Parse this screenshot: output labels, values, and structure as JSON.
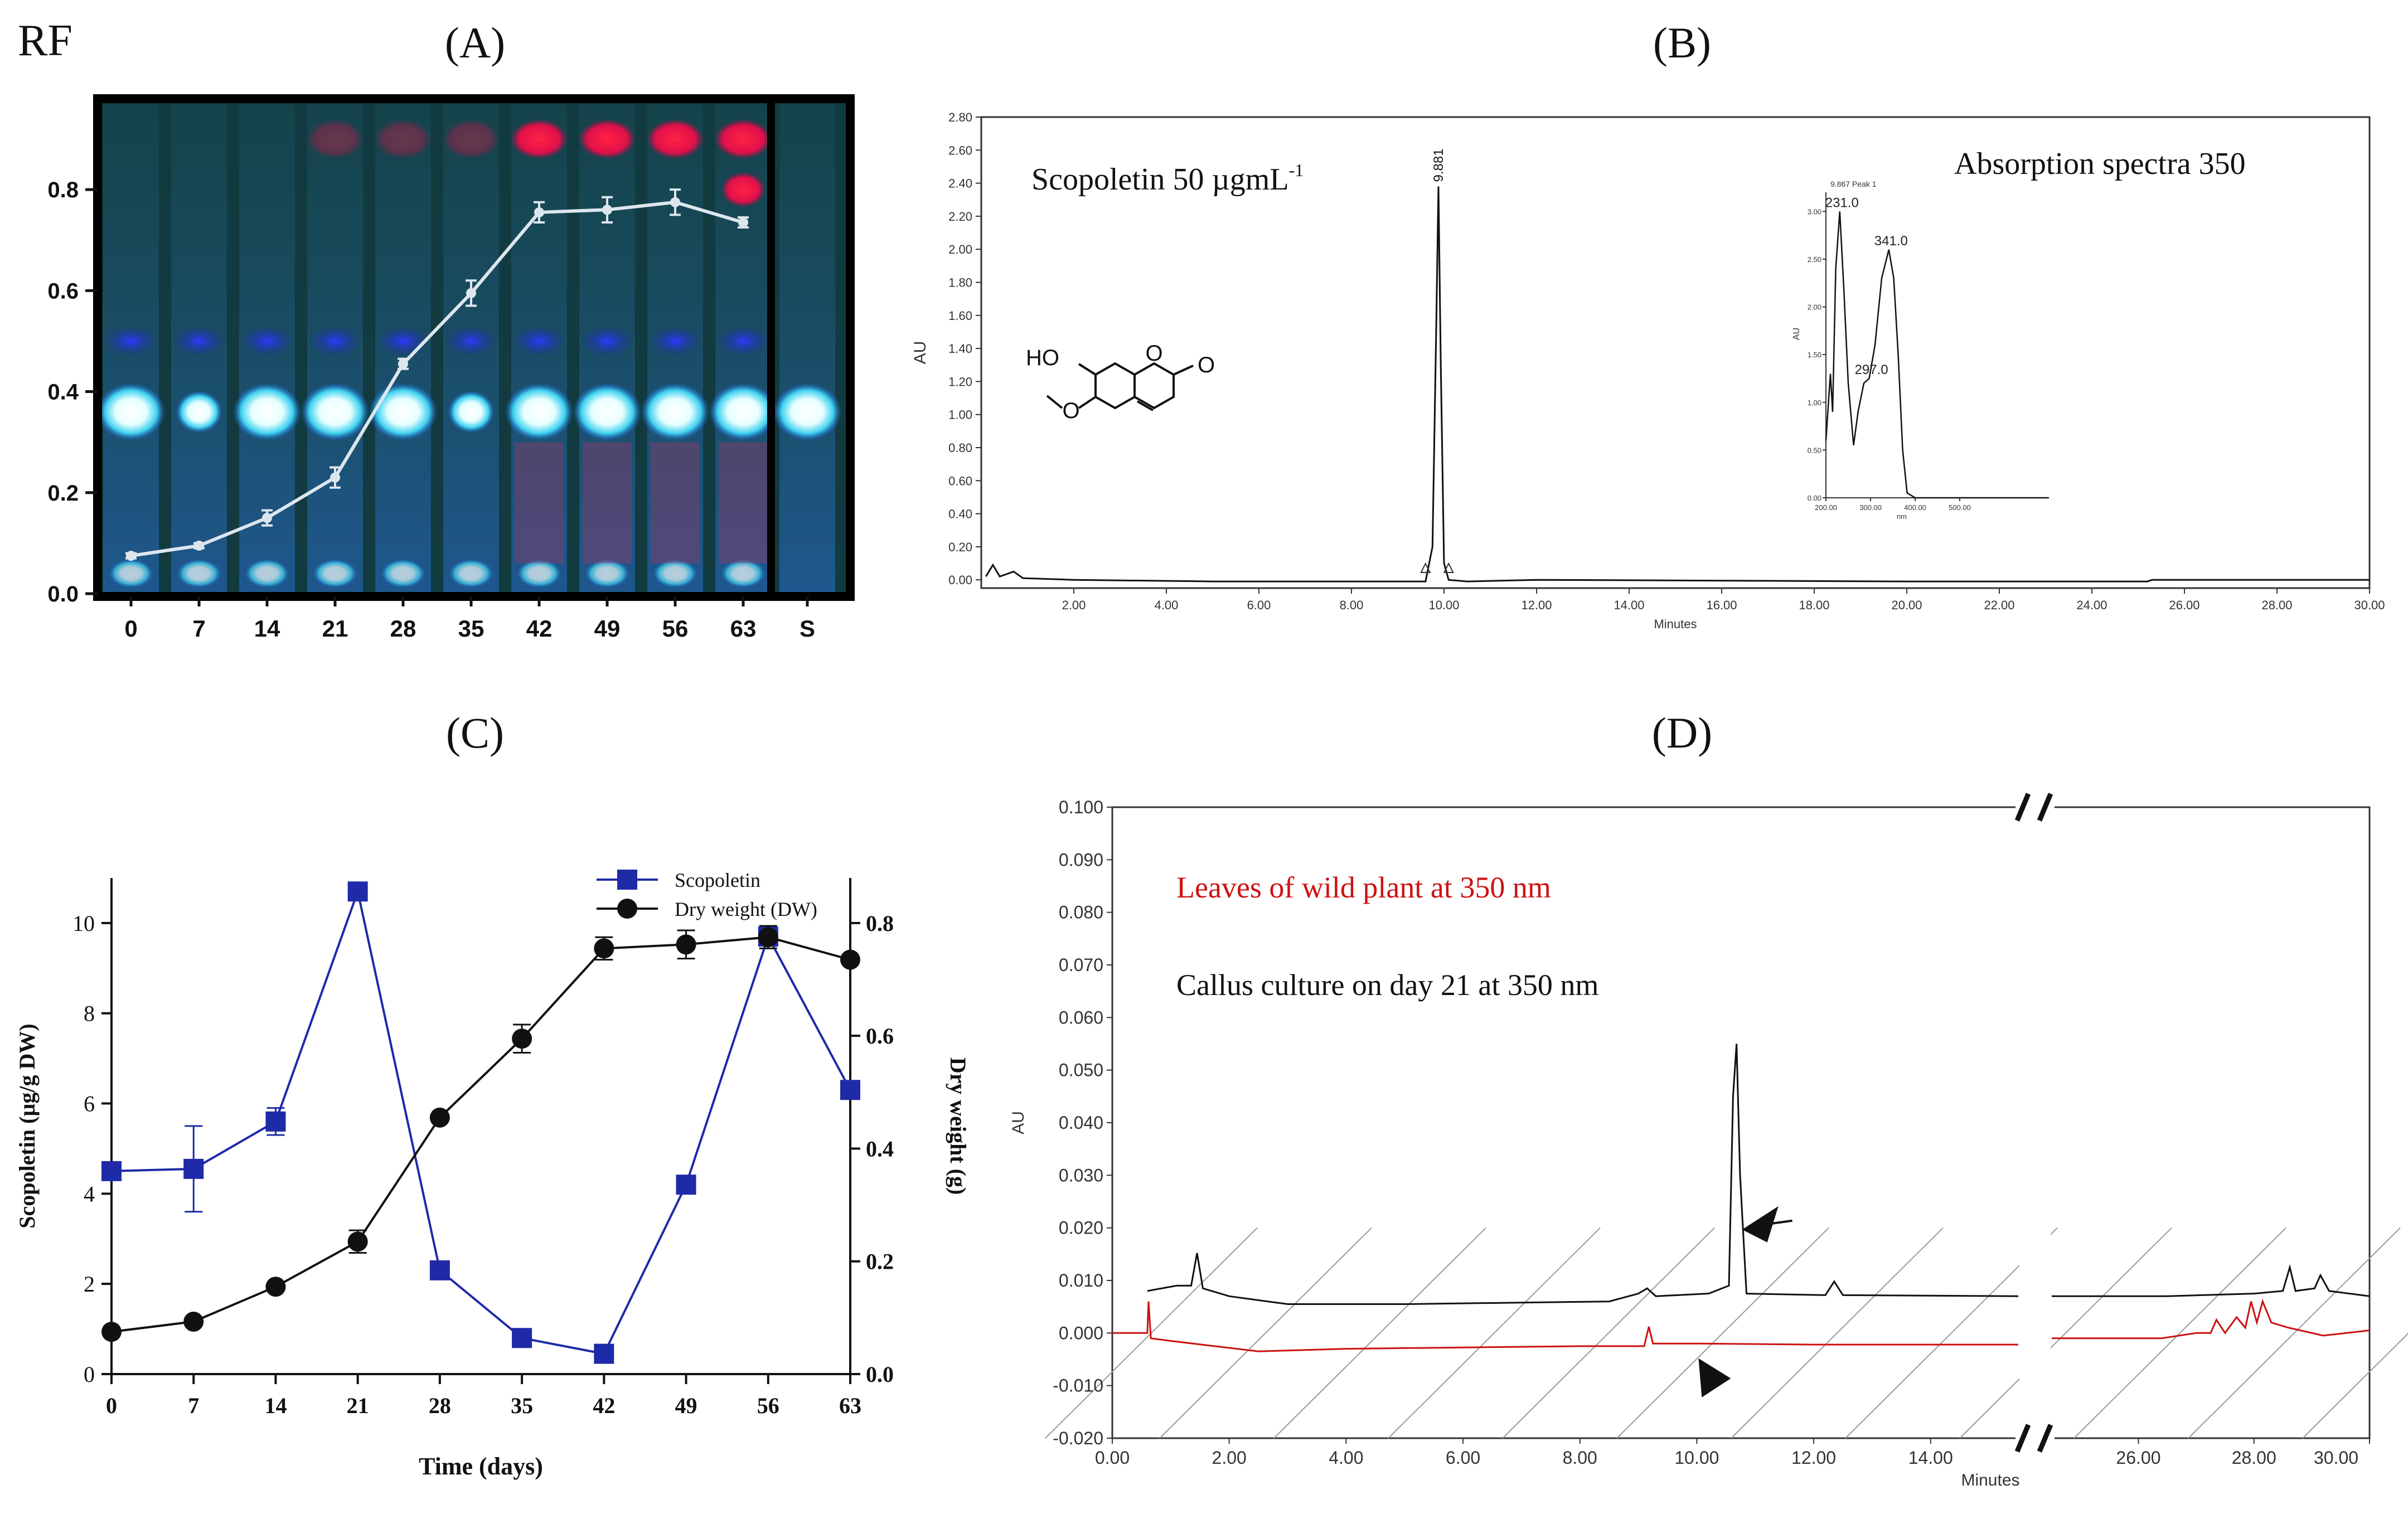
{
  "figure": {
    "rf_label": "RF",
    "panels": [
      "(A)",
      "(B)",
      "(C)",
      "(D)"
    ]
  },
  "chart_data": [
    {
      "panel": "(A)",
      "type": "line",
      "ylabel": "RF",
      "x_categories": [
        "0",
        "7",
        "14",
        "21",
        "28",
        "35",
        "42",
        "49",
        "56",
        "63",
        "S"
      ],
      "x": [
        0,
        7,
        14,
        21,
        28,
        35,
        42,
        49,
        56,
        63
      ],
      "values": [
        0.075,
        0.095,
        0.15,
        0.23,
        0.455,
        0.595,
        0.755,
        0.76,
        0.775,
        0.735
      ],
      "errors": [
        0.005,
        0.005,
        0.015,
        0.02,
        0.01,
        0.025,
        0.02,
        0.025,
        0.025,
        0.01
      ],
      "yticks": [
        "0.0",
        "0.2",
        "0.4",
        "0.6",
        "0.8"
      ],
      "ylim": [
        0,
        0.98
      ],
      "background": "TLC plate under UV",
      "colors": {
        "line": "#dde6ee",
        "plate": "#0f3a3f"
      }
    },
    {
      "panel": "(B)",
      "type": "line",
      "title": "Scopoletin 50 µgmL",
      "title_sup": "-1",
      "ylabel": "AU",
      "xlabel": "Minutes",
      "xticks": [
        "2.00",
        "4.00",
        "6.00",
        "8.00",
        "10.00",
        "12.00",
        "14.00",
        "16.00",
        "18.00",
        "20.00",
        "22.00",
        "24.00",
        "26.00",
        "28.00",
        "30.00"
      ],
      "yticks": [
        "0.00",
        "0.20",
        "0.40",
        "0.60",
        "0.80",
        "1.00",
        "1.20",
        "1.40",
        "1.60",
        "1.80",
        "2.00",
        "2.20",
        "2.40",
        "2.60",
        "2.80"
      ],
      "xlim": [
        0,
        30
      ],
      "ylim": [
        -0.05,
        2.8
      ],
      "peak": {
        "x": 9.881,
        "y": 2.38,
        "label": "9.881"
      },
      "trace": [
        [
          0.1,
          0.02
        ],
        [
          0.25,
          0.09
        ],
        [
          0.4,
          0.02
        ],
        [
          0.7,
          0.05
        ],
        [
          0.9,
          0.01
        ],
        [
          2,
          0.0
        ],
        [
          5,
          -0.01
        ],
        [
          9.6,
          -0.01
        ],
        [
          9.75,
          0.2
        ],
        [
          9.83,
          1.5
        ],
        [
          9.88,
          2.38
        ],
        [
          9.93,
          1.3
        ],
        [
          10.0,
          0.1
        ],
        [
          10.1,
          0.0
        ],
        [
          10.5,
          -0.01
        ],
        [
          12,
          -0.0
        ],
        [
          20,
          -0.01
        ],
        [
          25.2,
          -0.01
        ],
        [
          25.3,
          0.0
        ],
        [
          30,
          0.0
        ]
      ],
      "structure": {
        "atoms": [
          "HO",
          "O",
          "O"
        ]
      },
      "inset": {
        "title": "Absorption spectra 350",
        "header": "9.867 Peak 1",
        "ylabel": "AU",
        "xlabel": "nm",
        "xticks": [
          "200.00",
          "300.00",
          "400.00",
          "500.00"
        ],
        "yticks": [
          "0.00",
          "0.50",
          "1.00",
          "1.50",
          "2.00",
          "2.50",
          "3.00"
        ],
        "xlim": [
          200,
          700
        ],
        "ylim": [
          0,
          3.2
        ],
        "peak_labels": [
          {
            "x": 231,
            "y": 3.0,
            "label": "231.0"
          },
          {
            "x": 297,
            "y": 1.25,
            "label": "297.0"
          },
          {
            "x": 341,
            "y": 2.6,
            "label": "341.0"
          }
        ],
        "trace": [
          [
            200,
            0.6
          ],
          [
            210,
            1.3
          ],
          [
            215,
            0.9
          ],
          [
            222,
            2.4
          ],
          [
            231,
            3.0
          ],
          [
            240,
            2.2
          ],
          [
            250,
            1.2
          ],
          [
            262,
            0.55
          ],
          [
            272,
            0.9
          ],
          [
            285,
            1.2
          ],
          [
            297,
            1.25
          ],
          [
            310,
            1.6
          ],
          [
            325,
            2.3
          ],
          [
            341,
            2.6
          ],
          [
            352,
            2.3
          ],
          [
            362,
            1.5
          ],
          [
            372,
            0.5
          ],
          [
            382,
            0.05
          ],
          [
            400,
            0.0
          ],
          [
            700,
            0.0
          ]
        ]
      }
    },
    {
      "panel": "(C)",
      "type": "line",
      "xlabel": "Time (days)",
      "ylabel": "Scopoletin (µg/g DW)",
      "y2label": "Dry weight (g)",
      "x": [
        0,
        7,
        14,
        21,
        28,
        35,
        42,
        49,
        56,
        63
      ],
      "xticks": [
        "0",
        "7",
        "14",
        "21",
        "28",
        "35",
        "42",
        "49",
        "56",
        "63"
      ],
      "yticks": [
        "0",
        "2",
        "4",
        "6",
        "8",
        "10"
      ],
      "y2ticks": [
        "0.0",
        "0.2",
        "0.4",
        "0.6",
        "0.8"
      ],
      "ylim": [
        0,
        11
      ],
      "y2lim": [
        0,
        0.88
      ],
      "legend_position": "top-right",
      "series": [
        {
          "name": "Scopoletin",
          "axis": "left",
          "color": "#1f2aa8",
          "marker": "square",
          "values": [
            4.5,
            4.55,
            5.6,
            10.7,
            2.3,
            0.8,
            0.45,
            4.2,
            9.7,
            6.3
          ],
          "errors": [
            0.05,
            0.95,
            0.3,
            0.1,
            0.05,
            0.05,
            0.05,
            0.05,
            0.1,
            0.05
          ]
        },
        {
          "name": "Dry weight (DW)",
          "axis": "right",
          "color": "#111111",
          "marker": "circle",
          "values": [
            0.075,
            0.093,
            0.155,
            0.235,
            0.455,
            0.595,
            0.755,
            0.762,
            0.775,
            0.735
          ],
          "errors": [
            0.005,
            0.005,
            0.005,
            0.02,
            0.005,
            0.025,
            0.02,
            0.025,
            0.02,
            0.005
          ]
        }
      ]
    },
    {
      "panel": "(D)",
      "type": "line",
      "ylabel": "AU",
      "xlabel": "Minutes",
      "xticks_left": [
        "0.00",
        "2.00",
        "4.00",
        "6.00",
        "8.00",
        "10.00",
        "12.00",
        "14.00"
      ],
      "xticks_right": [
        "26.00",
        "28.00",
        "30.00"
      ],
      "yticks": [
        "-0.020",
        "-0.010",
        "0.000",
        "0.010",
        "0.020",
        "0.030",
        "0.040",
        "0.050",
        "0.060",
        "0.070",
        "0.080",
        "0.090",
        "0.100"
      ],
      "ylim": [
        -0.02,
        0.1
      ],
      "x_break": [
        15.5,
        24.5
      ],
      "series": [
        {
          "name": "Leaves of wild plant at 350 nm",
          "color": "#cc1111",
          "left": [
            [
              0,
              0.0
            ],
            [
              0.6,
              0.0
            ],
            [
              0.62,
              0.006
            ],
            [
              0.66,
              -0.001
            ],
            [
              1.0,
              -0.0015
            ],
            [
              2.5,
              -0.0035
            ],
            [
              4,
              -0.003
            ],
            [
              8,
              -0.0025
            ],
            [
              9.1,
              -0.0025
            ],
            [
              9.18,
              0.0012
            ],
            [
              9.25,
              -0.002
            ],
            [
              10,
              -0.002
            ],
            [
              12,
              -0.0022
            ],
            [
              15.5,
              -0.0022
            ]
          ],
          "right": [
            [
              24.5,
              -0.001
            ],
            [
              26.4,
              -0.001
            ],
            [
              27,
              0.0
            ],
            [
              27.25,
              0.0
            ],
            [
              27.35,
              0.0025
            ],
            [
              27.5,
              0.0
            ],
            [
              27.7,
              0.003
            ],
            [
              27.85,
              0.001
            ],
            [
              27.95,
              0.006
            ],
            [
              28.05,
              0.002
            ],
            [
              28.15,
              0.006
            ],
            [
              28.3,
              0.002
            ],
            [
              28.6,
              0.001
            ],
            [
              29.2,
              -0.0005
            ],
            [
              30,
              0.0005
            ]
          ]
        },
        {
          "name": "Callus culture on day 21 at 350 nm",
          "color": "#111111",
          "left": [
            [
              0.6,
              0.008
            ],
            [
              1.1,
              0.009
            ],
            [
              1.35,
              0.009
            ],
            [
              1.45,
              0.0152
            ],
            [
              1.55,
              0.0085
            ],
            [
              2,
              0.007
            ],
            [
              3,
              0.0055
            ],
            [
              5,
              0.0055
            ],
            [
              8.5,
              0.006
            ],
            [
              9,
              0.0075
            ],
            [
              9.15,
              0.0085
            ],
            [
              9.3,
              0.007
            ],
            [
              10.2,
              0.0075
            ],
            [
              10.55,
              0.009
            ],
            [
              10.62,
              0.045
            ],
            [
              10.68,
              0.055
            ],
            [
              10.74,
              0.03
            ],
            [
              10.85,
              0.0075
            ],
            [
              12.2,
              0.0072
            ],
            [
              12.35,
              0.0098
            ],
            [
              12.5,
              0.0072
            ],
            [
              15.5,
              0.007
            ]
          ],
          "right": [
            [
              24.5,
              0.007
            ],
            [
              26.5,
              0.007
            ],
            [
              28.0,
              0.0075
            ],
            [
              28.5,
              0.008
            ],
            [
              28.62,
              0.0125
            ],
            [
              28.72,
              0.008
            ],
            [
              29.05,
              0.0085
            ],
            [
              29.15,
              0.011
            ],
            [
              29.3,
              0.008
            ],
            [
              30,
              0.007
            ]
          ]
        }
      ],
      "arrows": [
        {
          "x": 11.3,
          "y": 0.022
        },
        {
          "x": 10.2,
          "y": -0.008
        }
      ]
    }
  ]
}
